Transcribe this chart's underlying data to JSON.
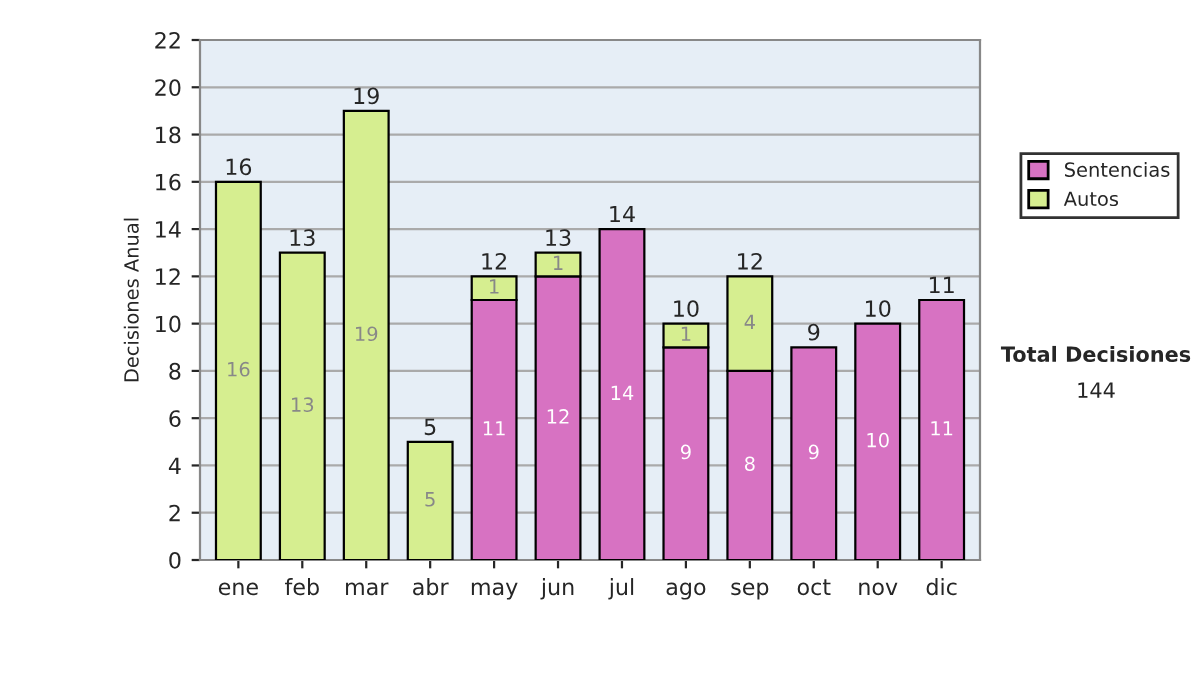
{
  "chart_data": {
    "type": "bar",
    "stacked": true,
    "ylabel": "Decisiones Anual",
    "categories": [
      "ene",
      "feb",
      "mar",
      "abr",
      "may",
      "jun",
      "jul",
      "ago",
      "sep",
      "oct",
      "nov",
      "dic"
    ],
    "series": [
      {
        "name": "Sentencias",
        "color": "#d772c2",
        "values": [
          null,
          null,
          null,
          null,
          11,
          12,
          14,
          9,
          8,
          9,
          10,
          11
        ]
      },
      {
        "name": "Autos",
        "color": "#d6ee90",
        "values": [
          16,
          13,
          19,
          5,
          1,
          1,
          null,
          1,
          4,
          null,
          null,
          null
        ]
      }
    ],
    "totals": [
      "16",
      "13",
      "19",
      "5",
      "12",
      "13",
      "14",
      "10",
      "12",
      "9",
      "10",
      "11"
    ],
    "data_labels": true,
    "ylim": [
      0,
      22
    ],
    "yticks": [
      0,
      2,
      4,
      6,
      8,
      10,
      12,
      14,
      16,
      18,
      20,
      22
    ],
    "grid": "y",
    "legend": "right",
    "annotations": [
      "Total Decisiones",
      "144"
    ]
  }
}
